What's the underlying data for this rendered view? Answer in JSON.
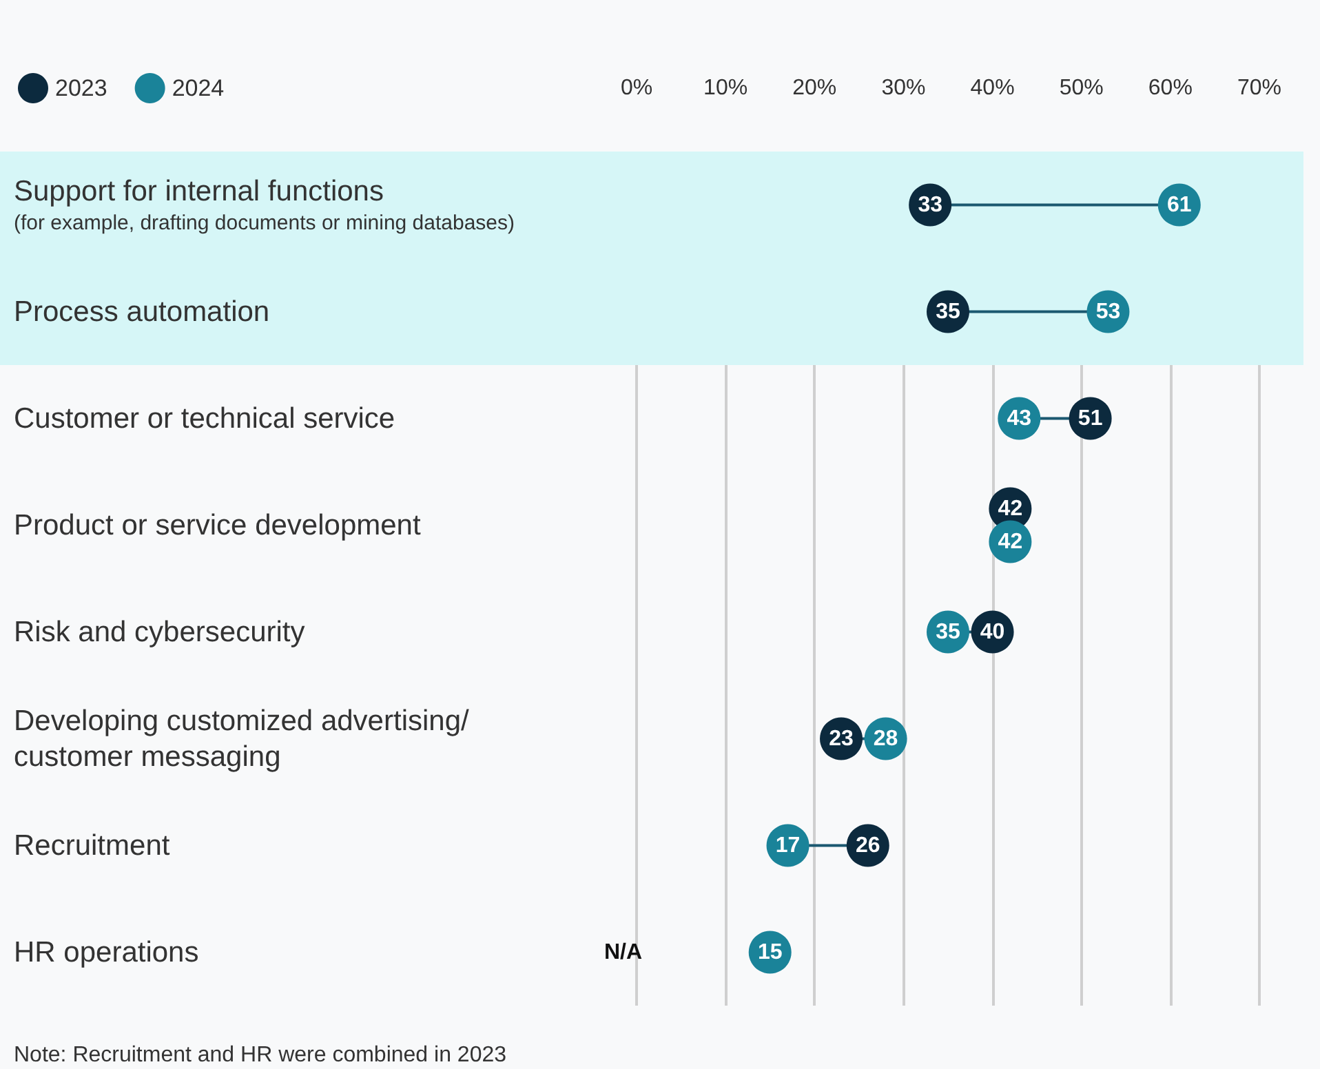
{
  "chart_data": {
    "type": "scatter",
    "orientation": "horizontal",
    "categories": [
      "Support for internal functions (for example, drafting documents or mining databases)",
      "Process automation",
      "Customer or technical service",
      "Product or service development",
      "Risk and cybersecurity",
      "Developing customized advertising/customer messaging",
      "Recruitment",
      "HR operations"
    ],
    "series": [
      {
        "name": "2023",
        "color": "#0c2a3e",
        "values": [
          33,
          35,
          51,
          42,
          40,
          23,
          26,
          null
        ],
        "value_labels": [
          "33",
          "35",
          "51",
          "42",
          "40",
          "23",
          "26",
          "N/A"
        ]
      },
      {
        "name": "2024",
        "color": "#1a8399",
        "values": [
          61,
          53,
          43,
          42,
          35,
          28,
          17,
          15
        ]
      }
    ],
    "xlim": [
      0,
      70
    ],
    "xticks": [
      {
        "value": 0,
        "label": "0%"
      },
      {
        "value": 10,
        "label": "10%"
      },
      {
        "value": 20,
        "label": "20%"
      },
      {
        "value": 30,
        "label": "30%"
      },
      {
        "value": 40,
        "label": "40%"
      },
      {
        "value": 50,
        "label": "50%"
      },
      {
        "value": 60,
        "label": "60%"
      },
      {
        "value": 70,
        "label": "70%"
      }
    ],
    "grid": "x",
    "legend": "top left",
    "marker": "circle",
    "data_labels": true,
    "bands": [
      {
        "axis": "y",
        "from": "Support for internal functions (for example, drafting documents or mining databases)",
        "to": "Process automation",
        "color": "#d6f6f7"
      }
    ],
    "annotations": [
      "Note: Recruitment and HR were combined in 2023"
    ]
  }
}
